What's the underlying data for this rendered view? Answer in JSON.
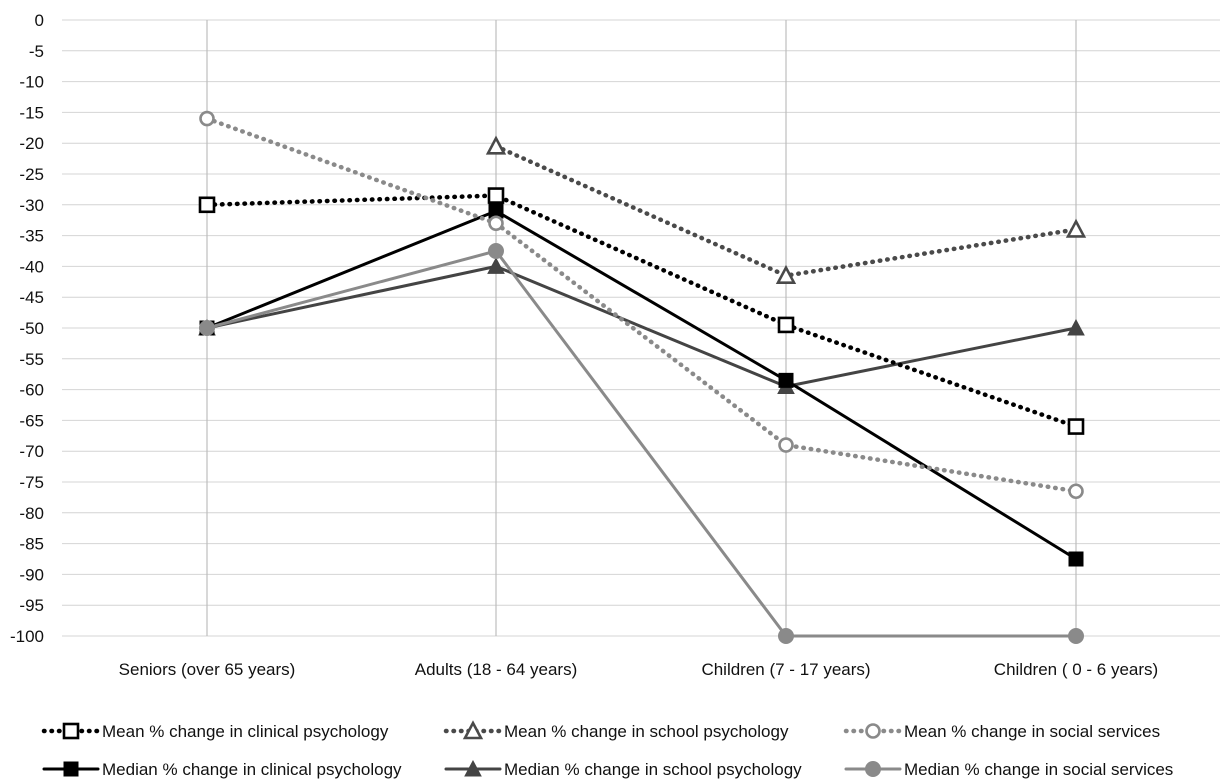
{
  "chart_data": {
    "type": "line",
    "title": "",
    "xlabel": "",
    "ylabel": "",
    "categories": [
      "Seniors (over 65 years)",
      "Adults (18 - 64 years)",
      "Children (7 - 17 years)",
      "Children ( 0 - 6 years)"
    ],
    "ylim": [
      -100,
      0
    ],
    "yticks": [
      0,
      -5,
      -10,
      -15,
      -20,
      -25,
      -30,
      -35,
      -40,
      -45,
      -50,
      -55,
      -60,
      -65,
      -70,
      -75,
      -80,
      -85,
      -90,
      -95,
      -100
    ],
    "grid": "horizontal and vertical",
    "legend_position": "bottom",
    "series": [
      {
        "name": "Mean % change in clinical psychology",
        "values": [
          -30,
          -28.5,
          -49.5,
          -66
        ],
        "color": "#000000",
        "dash": "dotted",
        "marker": "square-open"
      },
      {
        "name": "Mean % change in school psychology",
        "values": [
          null,
          -20.5,
          -41.5,
          -34
        ],
        "color": "#4a4a4a",
        "dash": "dotted",
        "marker": "triangle-open"
      },
      {
        "name": "Mean % change in social services",
        "values": [
          -16,
          -33,
          -69,
          -76.5
        ],
        "color": "#8a8a8a",
        "dash": "dotted",
        "marker": "circle-open"
      },
      {
        "name": "Median % change in clinical psychology",
        "values": [
          -50,
          -31,
          -58.5,
          -87.5
        ],
        "color": "#000000",
        "dash": "solid",
        "marker": "square"
      },
      {
        "name": "Median % change in school psychology",
        "values": [
          -50,
          -40,
          -59.5,
          -50
        ],
        "color": "#444444",
        "dash": "solid",
        "marker": "triangle"
      },
      {
        "name": "Median % change in social services",
        "values": [
          -50,
          -37.5,
          -100,
          -100
        ],
        "color": "#8a8a8a",
        "dash": "solid",
        "marker": "circle"
      }
    ]
  }
}
